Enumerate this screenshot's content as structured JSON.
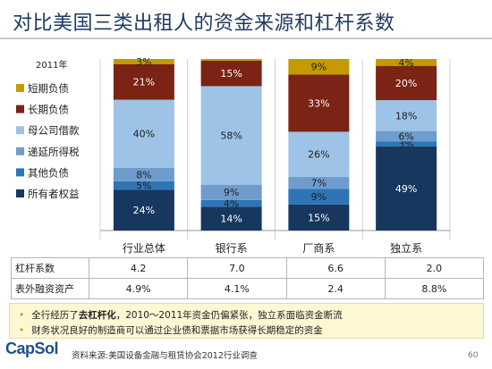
{
  "title": "对比美国三类出租人的资金来源和杠杆系数",
  "chart_data": {
    "type": "bar",
    "stacked": true,
    "percent_stacked": true,
    "year_label": "2011年",
    "categories": [
      "行业总体",
      "银行系",
      "厂商系",
      "独立系"
    ],
    "series": [
      {
        "name": "所有者权益",
        "color": "#17375e",
        "labels": [
          "24%",
          "14%",
          "15%",
          "49%"
        ],
        "values": [
          24,
          14,
          15,
          49
        ]
      },
      {
        "name": "其他负债",
        "color": "#2e75b6",
        "labels": [
          "5%",
          "4%",
          "9%",
          "3%"
        ],
        "values": [
          5,
          4,
          9,
          3
        ]
      },
      {
        "name": "递延所得税",
        "color": "#6f9ccd",
        "labels": [
          "8%",
          "9%",
          "7%",
          "6%"
        ],
        "values": [
          8,
          9,
          7,
          6
        ]
      },
      {
        "name": "母公司借款",
        "color": "#9dc3e6",
        "labels": [
          "40%",
          "58%",
          "26%",
          "18%"
        ],
        "values": [
          40,
          58,
          26,
          18
        ]
      },
      {
        "name": "长期负债",
        "color": "#7b2314",
        "labels": [
          "21%",
          "15%",
          "33%",
          "20%"
        ],
        "values": [
          21,
          15,
          33,
          20
        ]
      },
      {
        "name": "短期负债",
        "color": "#c49a00",
        "labels": [
          "3%",
          "",
          "9%",
          "4%"
        ],
        "values": [
          3,
          1,
          9,
          4
        ]
      }
    ],
    "legend_position": "left",
    "ylim": [
      0,
      100
    ]
  },
  "table": {
    "rows": [
      {
        "label": "杠杆系数",
        "values": [
          "4.2",
          "7.0",
          "6.6",
          "2.0"
        ]
      },
      {
        "label": "表外融资资产",
        "values": [
          "4.9%",
          "4.1%",
          "2.4",
          "8.8%"
        ]
      }
    ]
  },
  "bullets": [
    {
      "pre": "全行经历了",
      "bold": "去杠杆化",
      "post": "，2010～2011年资金仍偏紧张，独立系面临资金断流"
    },
    {
      "pre": "财务状况良好的制造商可以通过企业债和票据市场获得长期稳定的资金",
      "bold": "",
      "post": ""
    }
  ],
  "logo_text": "CapSol",
  "source": "资料来源:美国设备金融与租赁协会2012行业调查",
  "page_number": "60"
}
